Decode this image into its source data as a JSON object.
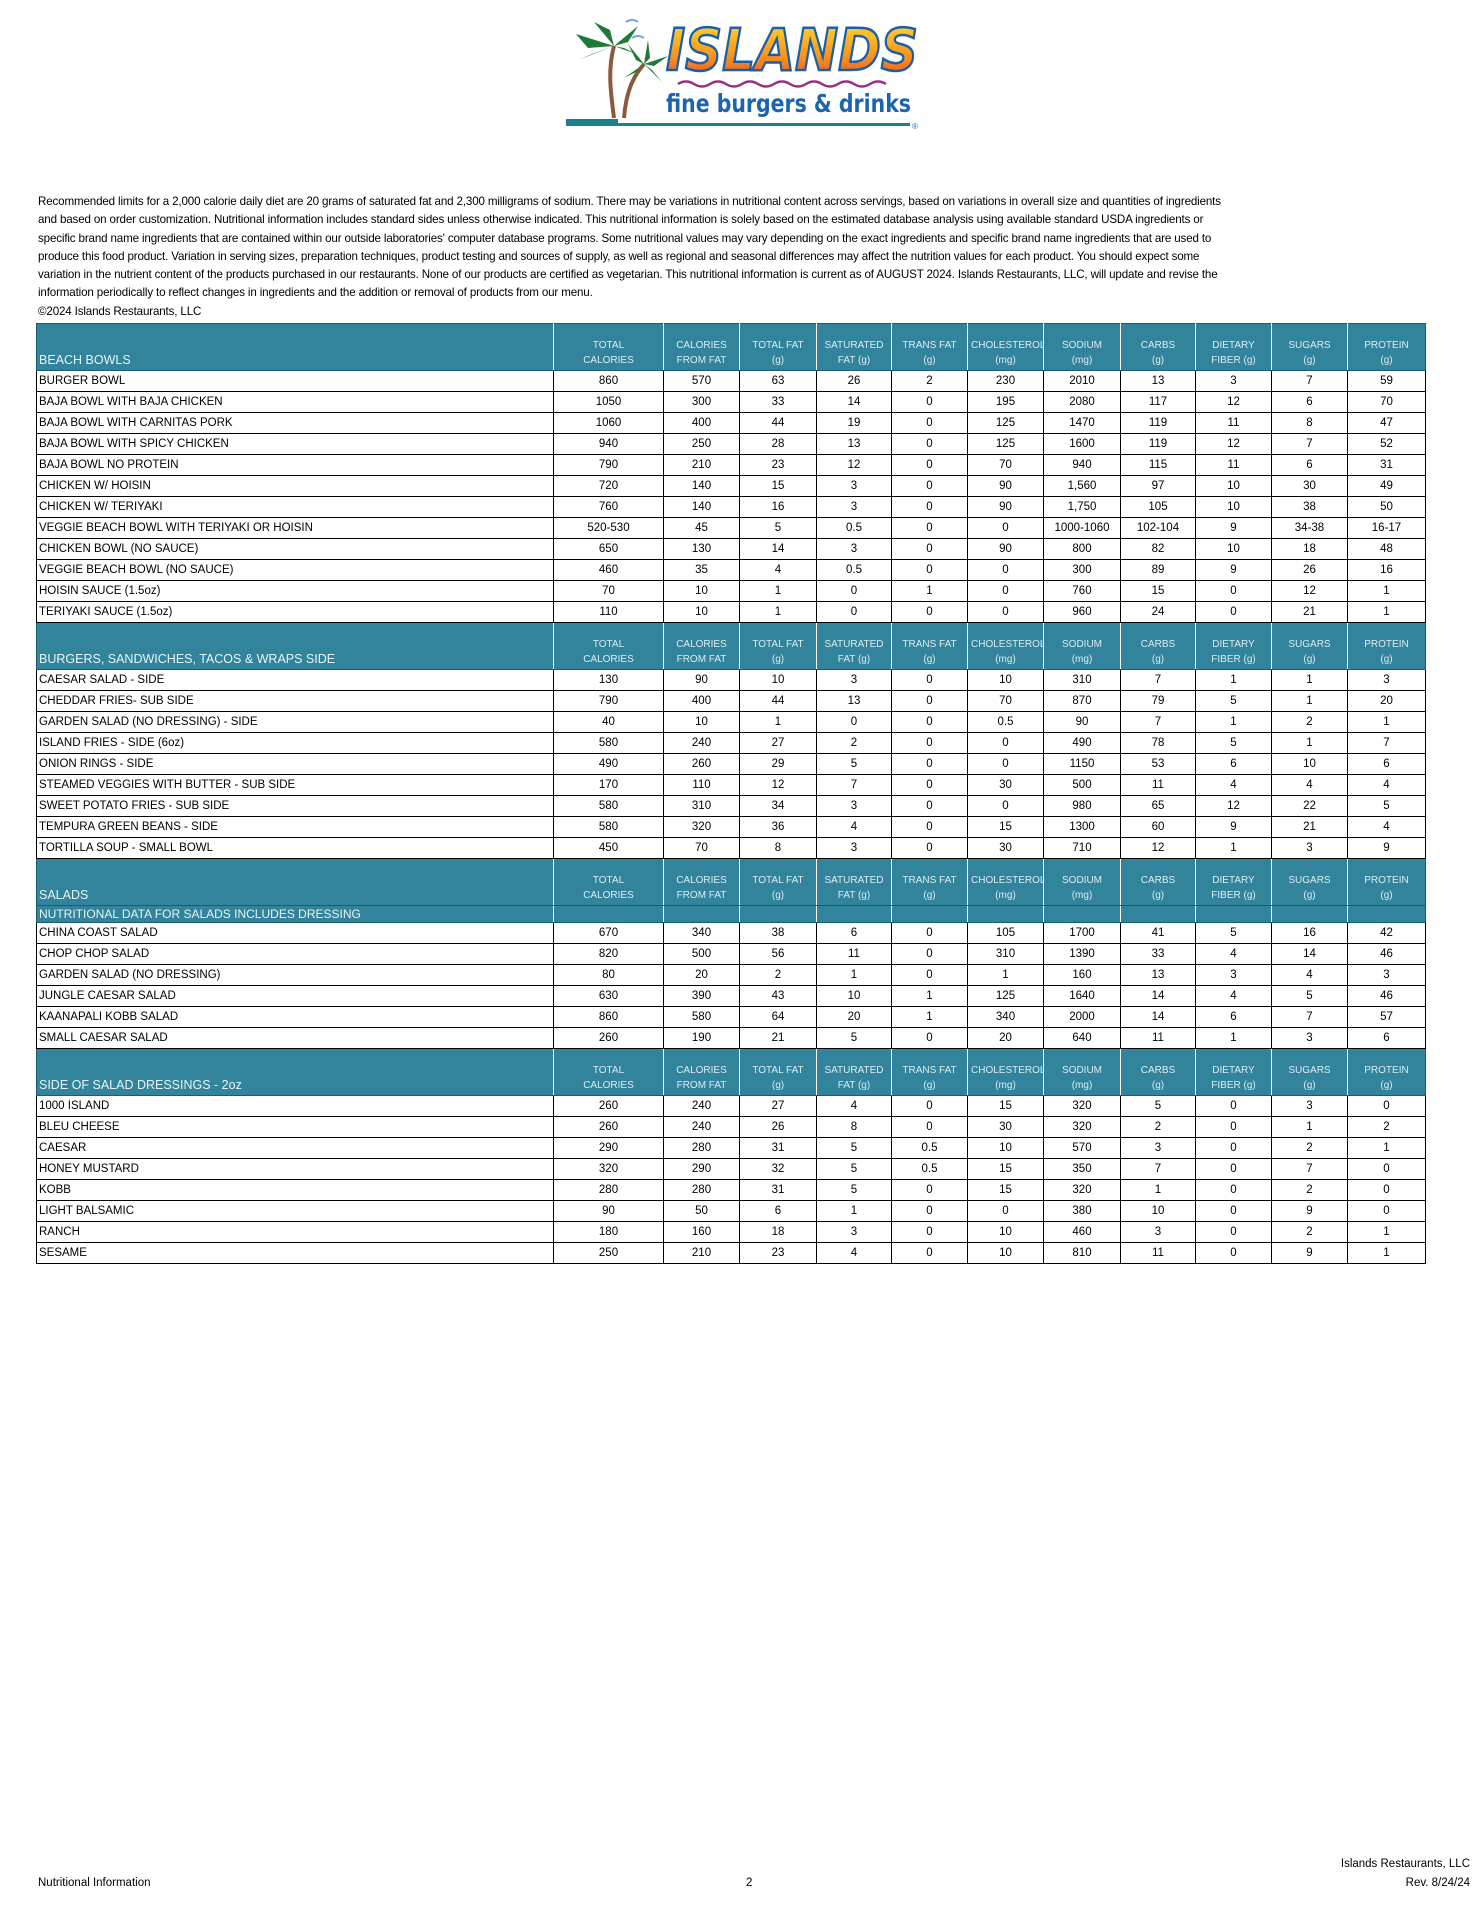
{
  "logo": {
    "brand": "ISLANDS",
    "tagline": "fine burgers & drinks",
    "mark": "®"
  },
  "disclaimer": {
    "lines": [
      "Recommended limits for a 2,000 calorie daily diet are 20 grams of saturated fat and 2,300 milligrams of sodium. There may be variations in nutritional content across servings, based on variations in overall size and quantities of ingredients",
      "and based on order customization. Nutritional information includes standard sides unless otherwise indicated. This nutritional information is solely based on the estimated database analysis using available standard USDA ingredients or",
      "specific brand name ingredients that are contained within our outside laboratories' computer database programs. Some nutritional values may vary depending on the exact ingredients and specific brand name ingredients that are used to",
      "produce this food product.  Variation in serving sizes, preparation techniques, product testing and sources of supply, as well as regional and seasonal differences may affect the nutrition values for each product. You should expect some",
      "variation in the nutrient content of the products purchased in our restaurants. None of our products are certified as vegetarian. This nutritional information is current as of AUGUST 2024.  Islands Restaurants, LLC, will update and revise the",
      "information periodically to reflect changes in ingredients and the addition or removal of products from our menu."
    ],
    "copyright": "©2024 Islands Restaurants, LLC"
  },
  "colors": {
    "header_bg": "#31849b",
    "header_text": "#dcecf1"
  },
  "columns": [
    [
      "TOTAL",
      "CALORIES"
    ],
    [
      "CALORIES",
      "FROM FAT"
    ],
    [
      "TOTAL FAT",
      "(g)"
    ],
    [
      "SATURATED",
      "FAT (g)"
    ],
    [
      "TRANS FAT",
      "(g)"
    ],
    [
      "CHOLESTEROL",
      "(mg)"
    ],
    [
      "SODIUM",
      "(mg)"
    ],
    [
      "CARBS",
      "(g)"
    ],
    [
      "DIETARY",
      "FIBER (g)"
    ],
    [
      "SUGARS",
      "(g)"
    ],
    [
      "PROTEIN",
      "(g)"
    ]
  ],
  "sections": [
    {
      "title": "BEACH BOWLS",
      "rows": [
        [
          "BURGER BOWL",
          "860",
          "570",
          "63",
          "26",
          "2",
          "230",
          "2010",
          "13",
          "3",
          "7",
          "59"
        ],
        [
          "BAJA BOWL WITH BAJA CHICKEN",
          "1050",
          "300",
          "33",
          "14",
          "0",
          "195",
          "2080",
          "117",
          "12",
          "6",
          "70"
        ],
        [
          "BAJA BOWL WITH CARNITAS PORK",
          "1060",
          "400",
          "44",
          "19",
          "0",
          "125",
          "1470",
          "119",
          "11",
          "8",
          "47"
        ],
        [
          "BAJA BOWL WITH SPICY CHICKEN",
          "940",
          "250",
          "28",
          "13",
          "0",
          "125",
          "1600",
          "119",
          "12",
          "7",
          "52"
        ],
        [
          "BAJA BOWL NO PROTEIN",
          "790",
          "210",
          "23",
          "12",
          "0",
          "70",
          "940",
          "115",
          "11",
          "6",
          "31"
        ],
        [
          "CHICKEN W/ HOISIN",
          "720",
          "140",
          "15",
          "3",
          "0",
          "90",
          "1,560",
          "97",
          "10",
          "30",
          "49"
        ],
        [
          "CHICKEN W/ TERIYAKI",
          "760",
          "140",
          "16",
          "3",
          "0",
          "90",
          "1,750",
          "105",
          "10",
          "38",
          "50"
        ],
        [
          "VEGGIE BEACH BOWL WITH TERIYAKI OR HOISIN",
          "520-530",
          "45",
          "5",
          "0.5",
          "0",
          "0",
          "1000-1060",
          "102-104",
          "9",
          "34-38",
          "16-17"
        ],
        [
          "CHICKEN BOWL (NO SAUCE)",
          "650",
          "130",
          "14",
          "3",
          "0",
          "90",
          "800",
          "82",
          "10",
          "18",
          "48"
        ],
        [
          "VEGGIE BEACH BOWL (NO SAUCE)",
          "460",
          "35",
          "4",
          "0.5",
          "0",
          "0",
          "300",
          "89",
          "9",
          "26",
          "16"
        ],
        [
          "HOISIN SAUCE (1.5oz)",
          "70",
          "10",
          "1",
          "0",
          "1",
          "0",
          "760",
          "15",
          "0",
          "12",
          "1"
        ],
        [
          "TERIYAKI SAUCE (1.5oz)",
          "110",
          "10",
          "1",
          "0",
          "0",
          "0",
          "960",
          "24",
          "0",
          "21",
          "1"
        ]
      ]
    },
    {
      "title": "BURGERS, SANDWICHES, TACOS & WRAPS SIDE",
      "rows": [
        [
          "CAESAR SALAD - SIDE",
          "130",
          "90",
          "10",
          "3",
          "0",
          "10",
          "310",
          "7",
          "1",
          "1",
          "3"
        ],
        [
          "CHEDDAR FRIES- SUB SIDE",
          "790",
          "400",
          "44",
          "13",
          "0",
          "70",
          "870",
          "79",
          "5",
          "1",
          "20"
        ],
        [
          "GARDEN SALAD (NO DRESSING)  - SIDE",
          "40",
          "10",
          "1",
          "0",
          "0",
          "0.5",
          "90",
          "7",
          "1",
          "2",
          "1"
        ],
        [
          "ISLAND FRIES - SIDE (6oz)",
          "580",
          "240",
          "27",
          "2",
          "0",
          "0",
          "490",
          "78",
          "5",
          "1",
          "7"
        ],
        [
          "ONION RINGS - SIDE",
          "490",
          "260",
          "29",
          "5",
          "0",
          "0",
          "1150",
          "53",
          "6",
          "10",
          "6"
        ],
        [
          "STEAMED VEGGIES WITH BUTTER - SUB SIDE",
          "170",
          "110",
          "12",
          "7",
          "0",
          "30",
          "500",
          "11",
          "4",
          "4",
          "4"
        ],
        [
          "SWEET POTATO FRIES  - SUB SIDE",
          "580",
          "310",
          "34",
          "3",
          "0",
          "0",
          "980",
          "65",
          "12",
          "22",
          "5"
        ],
        [
          "TEMPURA GREEN BEANS - SIDE",
          "580",
          "320",
          "36",
          "4",
          "0",
          "15",
          "1300",
          "60",
          "9",
          "21",
          "4"
        ],
        [
          "TORTILLA SOUP - SMALL BOWL",
          "450",
          "70",
          "8",
          "3",
          "0",
          "30",
          "710",
          "12",
          "1",
          "3",
          "9"
        ]
      ]
    },
    {
      "title": "SALADS",
      "note": "NUTRITIONAL DATA FOR SALADS INCLUDES DRESSING",
      "rows": [
        [
          "CHINA COAST SALAD",
          "670",
          "340",
          "38",
          "6",
          "0",
          "105",
          "1700",
          "41",
          "5",
          "16",
          "42"
        ],
        [
          "CHOP CHOP SALAD",
          "820",
          "500",
          "56",
          "11",
          "0",
          "310",
          "1390",
          "33",
          "4",
          "14",
          "46"
        ],
        [
          "GARDEN SALAD (NO DRESSING)",
          "80",
          "20",
          "2",
          "1",
          "0",
          "1",
          "160",
          "13",
          "3",
          "4",
          "3"
        ],
        [
          "JUNGLE CAESAR SALAD",
          "630",
          "390",
          "43",
          "10",
          "1",
          "125",
          "1640",
          "14",
          "4",
          "5",
          "46"
        ],
        [
          "KAANAPALI KOBB SALAD",
          "860",
          "580",
          "64",
          "20",
          "1",
          "340",
          "2000",
          "14",
          "6",
          "7",
          "57"
        ],
        [
          "SMALL CAESAR SALAD",
          "260",
          "190",
          "21",
          "5",
          "0",
          "20",
          "640",
          "11",
          "1",
          "3",
          "6"
        ]
      ]
    },
    {
      "title": "SIDE OF SALAD DRESSINGS - 2oz",
      "rows": [
        [
          "1000 ISLAND",
          "260",
          "240",
          "27",
          "4",
          "0",
          "15",
          "320",
          "5",
          "0",
          "3",
          "0"
        ],
        [
          "BLEU CHEESE",
          "260",
          "240",
          "26",
          "8",
          "0",
          "30",
          "320",
          "2",
          "0",
          "1",
          "2"
        ],
        [
          "CAESAR",
          "290",
          "280",
          "31",
          "5",
          "0.5",
          "10",
          "570",
          "3",
          "0",
          "2",
          "1"
        ],
        [
          "HONEY MUSTARD",
          "320",
          "290",
          "32",
          "5",
          "0.5",
          "15",
          "350",
          "7",
          "0",
          "7",
          "0"
        ],
        [
          "KOBB",
          "280",
          "280",
          "31",
          "5",
          "0",
          "15",
          "320",
          "1",
          "0",
          "2",
          "0"
        ],
        [
          "LIGHT BALSAMIC",
          "90",
          "50",
          "6",
          "1",
          "0",
          "0",
          "380",
          "10",
          "0",
          "9",
          "0"
        ],
        [
          "RANCH",
          "180",
          "160",
          "18",
          "3",
          "0",
          "10",
          "460",
          "3",
          "0",
          "2",
          "1"
        ],
        [
          "SESAME",
          "250",
          "210",
          "23",
          "4",
          "0",
          "10",
          "810",
          "11",
          "0",
          "9",
          "1"
        ]
      ]
    }
  ],
  "footer": {
    "left": "Nutritional Information",
    "page": "2",
    "company": "Islands Restaurants, LLC",
    "revision": "Rev. 8/24/24"
  }
}
